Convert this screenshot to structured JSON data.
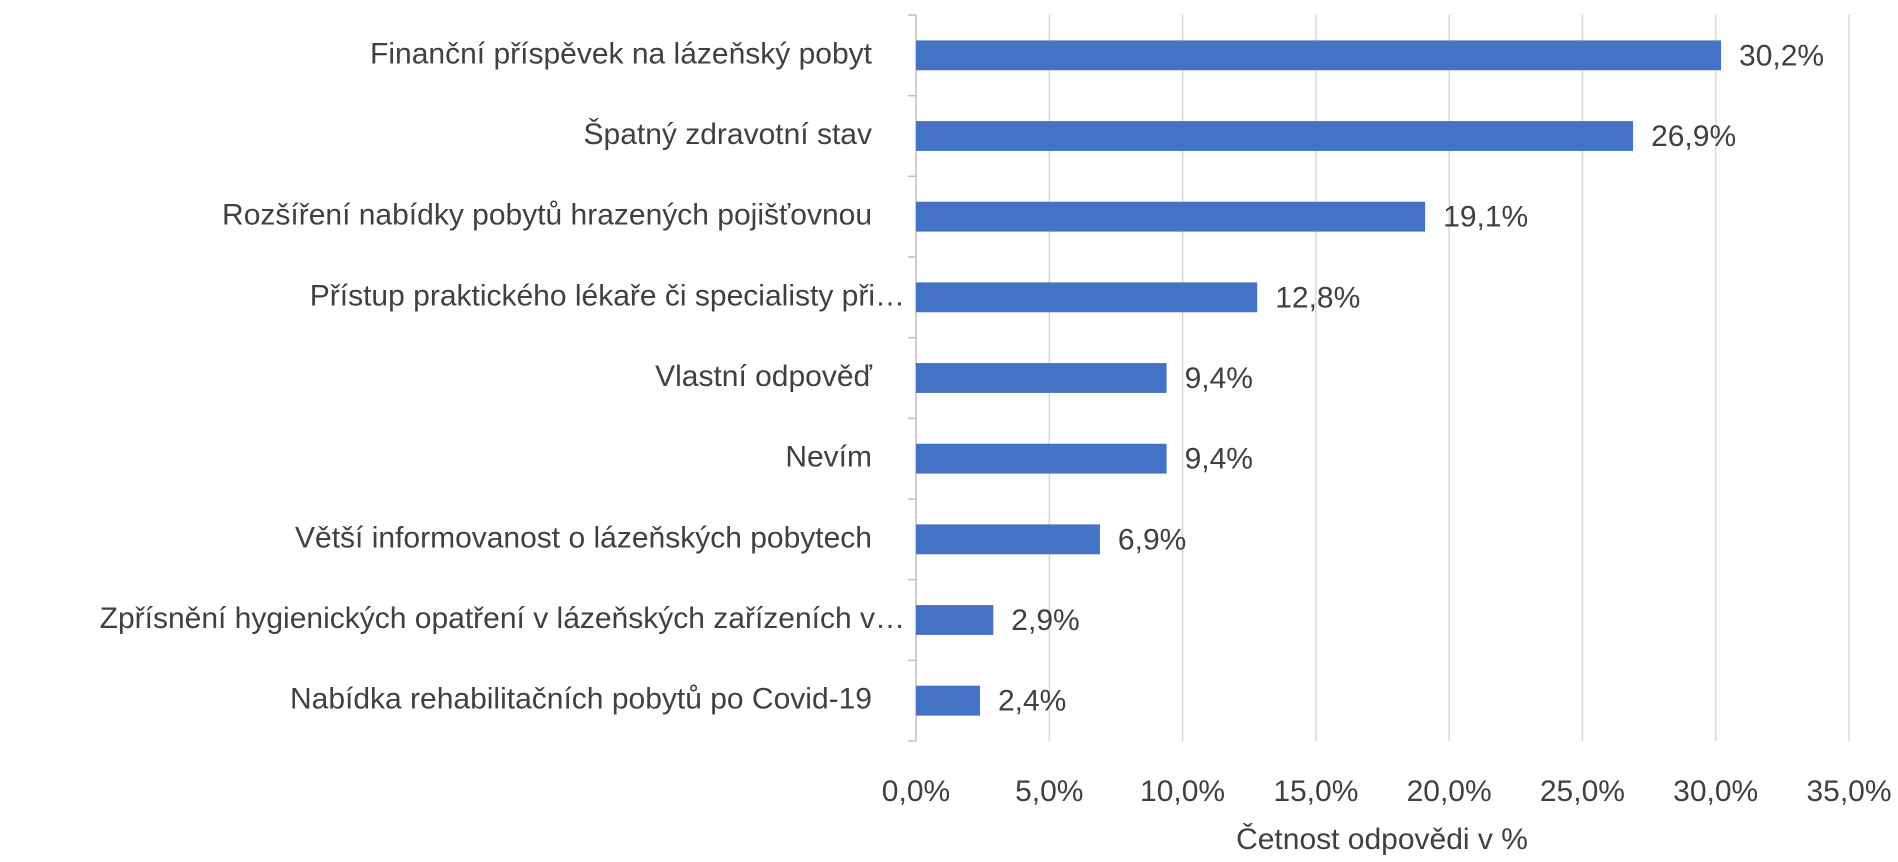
{
  "chart_data": {
    "type": "bar",
    "orientation": "horizontal",
    "x_label": "Četnost odpovědi v %",
    "categories": [
      "Finanční příspěvek na lázeňský pobyt",
      "Špatný zdravotní stav",
      "Rozšíření nabídky pobytů hrazených pojišťovnou",
      "Přístup praktického lékaře či specialisty při…",
      "Vlastní odpověď",
      "Nevím",
      "Větší informovanost o lázeňských pobytech",
      "Zpřísnění hygienických opatření v lázeňských zařízeních v…",
      "Nabídka rehabilitačních pobytů po Covid-19"
    ],
    "values": [
      30.2,
      26.9,
      19.1,
      12.8,
      9.4,
      9.4,
      6.9,
      2.9,
      2.4
    ],
    "value_labels": [
      "30,2%",
      "26,9%",
      "19,1%",
      "12,8%",
      "9,4%",
      "9,4%",
      "6,9%",
      "2,9%",
      "2,4%"
    ],
    "color": "#4472c4",
    "xlim": [
      0,
      35
    ],
    "xticks": [
      {
        "value": 0,
        "label": "0,0%"
      },
      {
        "value": 5,
        "label": "5,0%"
      },
      {
        "value": 10,
        "label": "10,0%"
      },
      {
        "value": 15,
        "label": "15,0%"
      },
      {
        "value": 20,
        "label": "20,0%"
      },
      {
        "value": 25,
        "label": "25,0%"
      },
      {
        "value": 30,
        "label": "30,0%"
      },
      {
        "value": 35,
        "label": "35,0%"
      }
    ],
    "grid": true
  }
}
